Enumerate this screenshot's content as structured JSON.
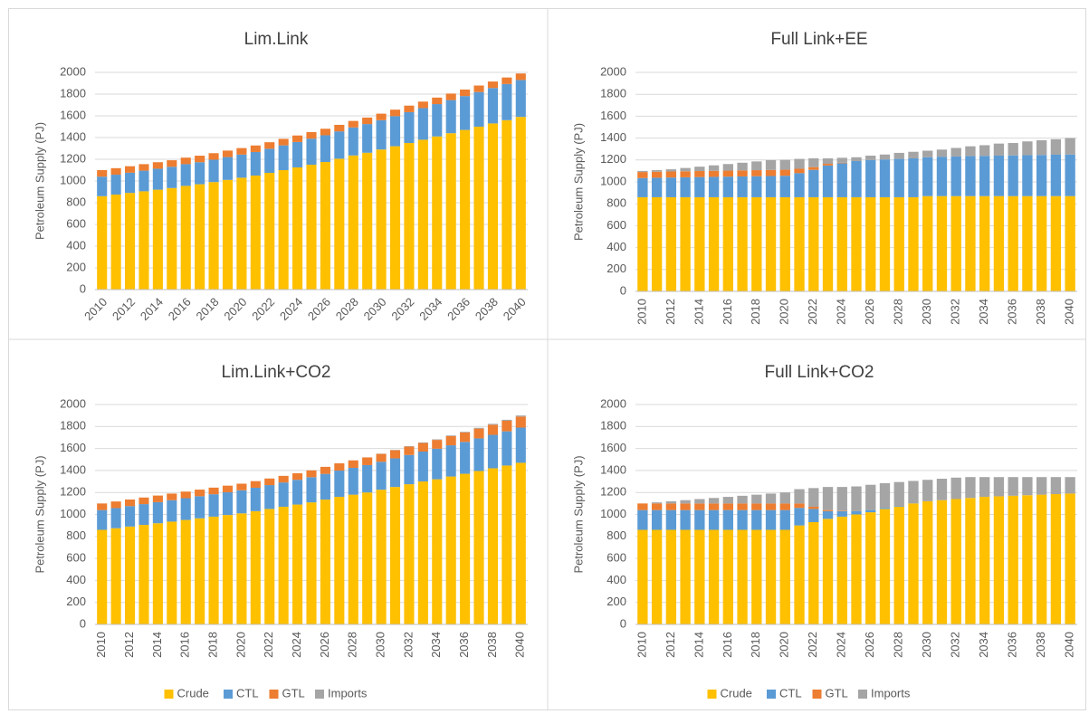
{
  "chart_data": [
    {
      "type": "bar",
      "stacked": true,
      "title": "Lim.Link",
      "ylabel": "Petroleum Supply (PJ)",
      "categories": [
        "2010",
        null,
        "2012",
        null,
        "2014",
        null,
        "2016",
        null,
        "2018",
        null,
        "2020",
        null,
        "2022",
        null,
        "2024",
        null,
        "2026",
        null,
        "2028",
        null,
        "2030",
        null,
        "2032",
        null,
        "2034",
        null,
        "2036",
        null,
        "2038",
        null,
        "2040"
      ],
      "series": [
        {
          "name": "Crude",
          "color": "#ffc000",
          "values": [
            860,
            875,
            890,
            905,
            920,
            935,
            955,
            970,
            990,
            1010,
            1030,
            1050,
            1075,
            1100,
            1125,
            1150,
            1175,
            1205,
            1235,
            1260,
            1290,
            1320,
            1350,
            1380,
            1410,
            1440,
            1470,
            1500,
            1530,
            1560,
            1590
          ]
        },
        {
          "name": "CTL",
          "color": "#5b9bd5",
          "values": [
            180,
            183,
            186,
            190,
            193,
            196,
            200,
            203,
            206,
            210,
            213,
            217,
            222,
            228,
            234,
            240,
            246,
            252,
            258,
            264,
            270,
            277,
            284,
            291,
            298,
            305,
            312,
            319,
            326,
            333,
            340
          ]
        },
        {
          "name": "GTL",
          "color": "#ed7d31",
          "values": [
            60,
            60,
            60,
            60,
            60,
            60,
            60,
            60,
            60,
            60,
            60,
            60,
            60,
            60,
            60,
            60,
            60,
            60,
            60,
            60,
            60,
            60,
            60,
            60,
            60,
            60,
            60,
            60,
            60,
            60,
            60
          ]
        },
        {
          "name": "Imports",
          "color": "#a5a5a5",
          "values": [
            0,
            0,
            0,
            0,
            0,
            0,
            0,
            0,
            0,
            0,
            0,
            0,
            0,
            0,
            0,
            0,
            0,
            0,
            0,
            0,
            0,
            0,
            0,
            0,
            0,
            0,
            0,
            0,
            0,
            0,
            0
          ]
        }
      ],
      "ylim": [
        0,
        2000
      ],
      "yticks": [
        0,
        200,
        400,
        600,
        800,
        1000,
        1200,
        1400,
        1600,
        1800,
        2000
      ],
      "legend": false
    },
    {
      "type": "bar",
      "stacked": true,
      "title": "Full Link+EE",
      "ylabel": "Petroleum Supply (PJ)",
      "categories": [
        "2010",
        null,
        "2012",
        null,
        "2014",
        null,
        "2016",
        null,
        "2018",
        null,
        "2020",
        null,
        "2022",
        null,
        "2024",
        null,
        "2026",
        null,
        "2028",
        null,
        "2030",
        null,
        "2032",
        null,
        "2034",
        null,
        "2036",
        null,
        "2038",
        null,
        "2040"
      ],
      "series": [
        {
          "name": "Crude",
          "color": "#ffc000",
          "values": [
            860,
            860,
            860,
            860,
            860,
            860,
            860,
            860,
            860,
            860,
            860,
            860,
            860,
            860,
            860,
            860,
            860,
            860,
            860,
            860,
            870,
            870,
            870,
            870,
            870,
            870,
            870,
            870,
            870,
            870,
            870
          ]
        },
        {
          "name": "CTL",
          "color": "#5b9bd5",
          "values": [
            175,
            178,
            180,
            182,
            184,
            186,
            188,
            190,
            192,
            194,
            196,
            220,
            250,
            290,
            310,
            330,
            340,
            345,
            350,
            355,
            355,
            360,
            362,
            365,
            368,
            370,
            372,
            374,
            376,
            378,
            380
          ]
        },
        {
          "name": "GTL",
          "color": "#ed7d31",
          "values": [
            55,
            55,
            55,
            55,
            55,
            55,
            55,
            55,
            55,
            55,
            55,
            40,
            25,
            15,
            5,
            0,
            0,
            0,
            0,
            0,
            0,
            0,
            0,
            0,
            0,
            0,
            0,
            0,
            0,
            0,
            0
          ]
        },
        {
          "name": "Imports",
          "color": "#a5a5a5",
          "values": [
            10,
            15,
            20,
            30,
            40,
            50,
            60,
            70,
            80,
            90,
            90,
            90,
            80,
            50,
            45,
            35,
            40,
            45,
            55,
            60,
            60,
            65,
            78,
            90,
            97,
            110,
            113,
            126,
            134,
            142,
            150
          ]
        }
      ],
      "ylim": [
        0,
        2000
      ],
      "yticks": [
        0,
        200,
        400,
        600,
        800,
        1000,
        1200,
        1400,
        1600,
        1800,
        2000
      ],
      "legend": false
    },
    {
      "type": "bar",
      "stacked": true,
      "title": "Lim.Link+CO2",
      "ylabel": "Petroleum Supply (PJ)",
      "categories": [
        "2010",
        null,
        "2012",
        null,
        "2014",
        null,
        "2016",
        null,
        "2018",
        null,
        "2020",
        null,
        "2022",
        null,
        "2024",
        null,
        "2026",
        null,
        "2028",
        null,
        "2030",
        null,
        "2032",
        null,
        "2034",
        null,
        "2036",
        null,
        "2038",
        null,
        "2040"
      ],
      "series": [
        {
          "name": "Crude",
          "color": "#ffc000",
          "values": [
            860,
            875,
            890,
            905,
            920,
            935,
            950,
            965,
            980,
            995,
            1010,
            1030,
            1050,
            1070,
            1090,
            1110,
            1135,
            1160,
            1180,
            1200,
            1225,
            1250,
            1275,
            1300,
            1320,
            1345,
            1370,
            1395,
            1420,
            1445,
            1470
          ]
        },
        {
          "name": "CTL",
          "color": "#5b9bd5",
          "values": [
            180,
            183,
            186,
            189,
            192,
            195,
            198,
            201,
            204,
            207,
            210,
            213,
            217,
            221,
            225,
            229,
            234,
            239,
            244,
            249,
            254,
            260,
            266,
            272,
            278,
            284,
            290,
            297,
            304,
            311,
            320
          ]
        },
        {
          "name": "GTL",
          "color": "#ed7d31",
          "values": [
            60,
            60,
            60,
            60,
            60,
            60,
            60,
            60,
            60,
            60,
            60,
            60,
            60,
            60,
            60,
            62,
            64,
            66,
            68,
            70,
            72,
            74,
            76,
            78,
            80,
            83,
            86,
            89,
            92,
            96,
            100
          ]
        },
        {
          "name": "Imports",
          "color": "#a5a5a5",
          "values": [
            0,
            0,
            0,
            0,
            0,
            0,
            0,
            0,
            0,
            0,
            0,
            0,
            0,
            0,
            0,
            0,
            0,
            0,
            0,
            0,
            2,
            3,
            4,
            5,
            5,
            6,
            6,
            7,
            8,
            9,
            10
          ]
        }
      ],
      "ylim": [
        0,
        2000
      ],
      "yticks": [
        0,
        200,
        400,
        600,
        800,
        1000,
        1200,
        1400,
        1600,
        1800,
        2000
      ],
      "legend": true
    },
    {
      "type": "bar",
      "stacked": true,
      "title": "Full Link+CO2",
      "ylabel": "Petroleum Supply (PJ)",
      "categories": [
        "2010",
        null,
        "2012",
        null,
        "2014",
        null,
        "2016",
        null,
        "2018",
        null,
        "2020",
        null,
        "2022",
        null,
        "2024",
        null,
        "2026",
        null,
        "2028",
        null,
        "2030",
        null,
        "2032",
        null,
        "2034",
        null,
        "2036",
        null,
        "2038",
        null,
        "2040"
      ],
      "series": [
        {
          "name": "Crude",
          "color": "#ffc000",
          "values": [
            860,
            860,
            860,
            860,
            860,
            860,
            860,
            860,
            860,
            860,
            860,
            900,
            930,
            960,
            980,
            1000,
            1020,
            1050,
            1070,
            1100,
            1120,
            1130,
            1140,
            1150,
            1160,
            1165,
            1170,
            1175,
            1180,
            1185,
            1190
          ]
        },
        {
          "name": "CTL",
          "color": "#5b9bd5",
          "values": [
            180,
            180,
            180,
            180,
            180,
            180,
            180,
            180,
            180,
            180,
            180,
            160,
            120,
            70,
            50,
            30,
            20,
            10,
            5,
            0,
            0,
            0,
            0,
            0,
            0,
            0,
            0,
            0,
            0,
            0,
            0
          ]
        },
        {
          "name": "GTL",
          "color": "#ed7d31",
          "values": [
            60,
            60,
            60,
            60,
            60,
            60,
            60,
            60,
            60,
            60,
            60,
            40,
            20,
            10,
            5,
            0,
            0,
            0,
            0,
            0,
            0,
            0,
            0,
            0,
            0,
            0,
            0,
            0,
            0,
            0,
            0
          ]
        },
        {
          "name": "Imports",
          "color": "#a5a5a5",
          "values": [
            0,
            10,
            20,
            30,
            40,
            50,
            60,
            70,
            80,
            90,
            100,
            130,
            170,
            210,
            215,
            225,
            230,
            225,
            220,
            205,
            195,
            195,
            195,
            190,
            180,
            175,
            170,
            165,
            160,
            155,
            150
          ]
        }
      ],
      "ylim": [
        0,
        2000
      ],
      "yticks": [
        0,
        200,
        400,
        600,
        800,
        1000,
        1200,
        1400,
        1600,
        1800,
        2000
      ],
      "legend": true
    }
  ]
}
